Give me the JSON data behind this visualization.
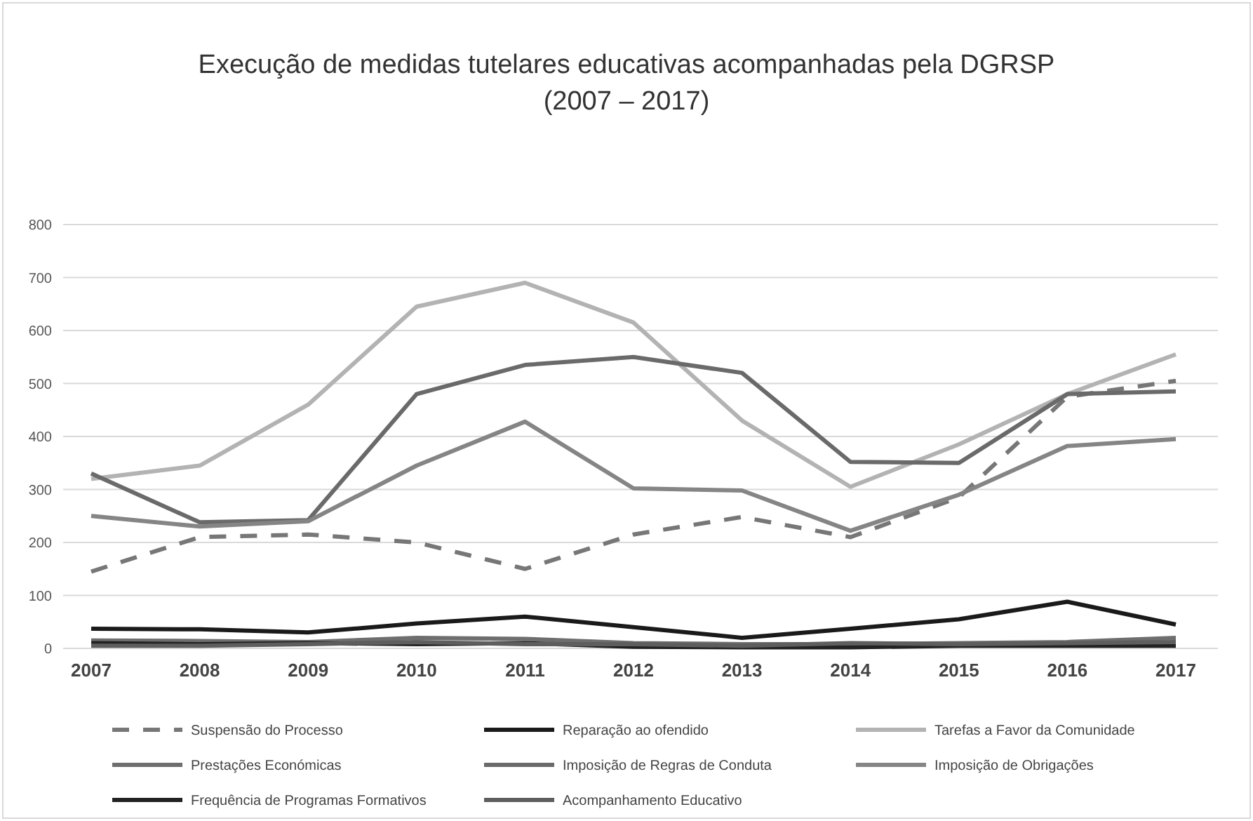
{
  "chart_data": {
    "type": "line",
    "title": "Execução de medidas tutelares educativas acompanhadas pela DGRSP (2007 – 2017)",
    "categories": [
      "2007",
      "2008",
      "2009",
      "2010",
      "2011",
      "2012",
      "2013",
      "2014",
      "2015",
      "2016",
      "2017"
    ],
    "series": [
      {
        "name": "Suspensão do Processo",
        "color": "#777777",
        "line_style": "dashed",
        "values": [
          145,
          210,
          215,
          200,
          150,
          215,
          248,
          210,
          285,
          475,
          505
        ]
      },
      {
        "name": "Reparação ao ofendido",
        "color": "#1a1a1a",
        "values": [
          37,
          36,
          30,
          47,
          60,
          40,
          20,
          37,
          55,
          88,
          45
        ]
      },
      {
        "name": "Tarefas a Favor da Comunidade",
        "color": "#b3b3b3",
        "values": [
          320,
          345,
          460,
          645,
          690,
          615,
          430,
          305,
          385,
          480,
          555
        ]
      },
      {
        "name": "Prestações Económicas",
        "color": "#6e6e6e",
        "values": [
          15,
          14,
          12,
          20,
          18,
          10,
          8,
          8,
          10,
          12,
          20
        ]
      },
      {
        "name": "Imposição de Regras de Conduta",
        "color": "#6a6a6a",
        "values": [
          330,
          238,
          242,
          480,
          535,
          550,
          520,
          352,
          350,
          480,
          485
        ]
      },
      {
        "name": "Imposição de Obrigações",
        "color": "#858585",
        "values": [
          250,
          230,
          240,
          345,
          428,
          302,
          298,
          222,
          290,
          382,
          395
        ]
      },
      {
        "name": "Frequência de Programas Formativos",
        "color": "#222222",
        "values": [
          10,
          8,
          10,
          8,
          10,
          3,
          2,
          2,
          5,
          5,
          5
        ]
      },
      {
        "name": "Acompanhamento Educativo",
        "color": "#5e5e5e",
        "values": [
          5,
          5,
          8,
          12,
          8,
          8,
          5,
          10,
          8,
          10,
          12
        ]
      }
    ],
    "ylim": [
      0,
      800
    ],
    "yticks": [
      0,
      100,
      200,
      300,
      400,
      500,
      600,
      700,
      800
    ],
    "grid": "y",
    "legend": "bottom",
    "marker": "none"
  }
}
